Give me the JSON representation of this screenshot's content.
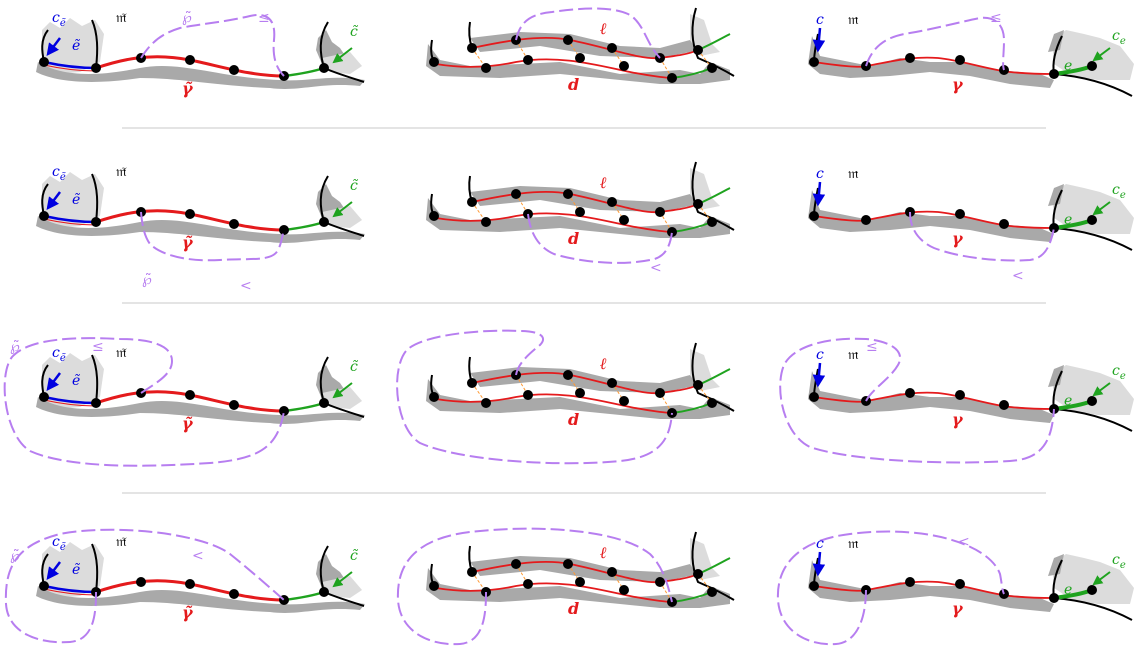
{
  "colors": {
    "red": "#e41a1c",
    "blue": "#0000e0",
    "green": "#1fa31f",
    "purple": "#b77ef0",
    "orange": "#ff9a33",
    "black": "#000000",
    "shadow": "#a9a9a9",
    "shadow_light": "#dcdcdc",
    "separator": "#c8c8c8"
  },
  "labels": {
    "c": "c",
    "c_e_main": "c",
    "c_e_sub": "e",
    "c_tilde_e_main": "c",
    "c_tilde_e_sub": "ẽ",
    "e": "e",
    "e_tilde": "ẽ",
    "c_tilde": "c̃",
    "m": "𝔪",
    "m_tilde": "𝔪̃",
    "gamma": "γ",
    "gamma_tilde": "γ̃",
    "ell": "ℓ",
    "d": "d",
    "wp": "℘",
    "wp_tilde": "℘̃",
    "leq": "≤",
    "lt": "<"
  },
  "rows": [
    {
      "path_side": "above",
      "relation": "leq",
      "wp_shown": true
    },
    {
      "path_side": "below",
      "relation": "lt",
      "wp_shown": true
    },
    {
      "path_side": "around-above",
      "relation": "leq",
      "wp_shown": true
    },
    {
      "path_side": "around-over",
      "relation": "lt",
      "wp_shown": true
    }
  ],
  "columns": [
    "tilde",
    "ladder",
    "plain"
  ]
}
